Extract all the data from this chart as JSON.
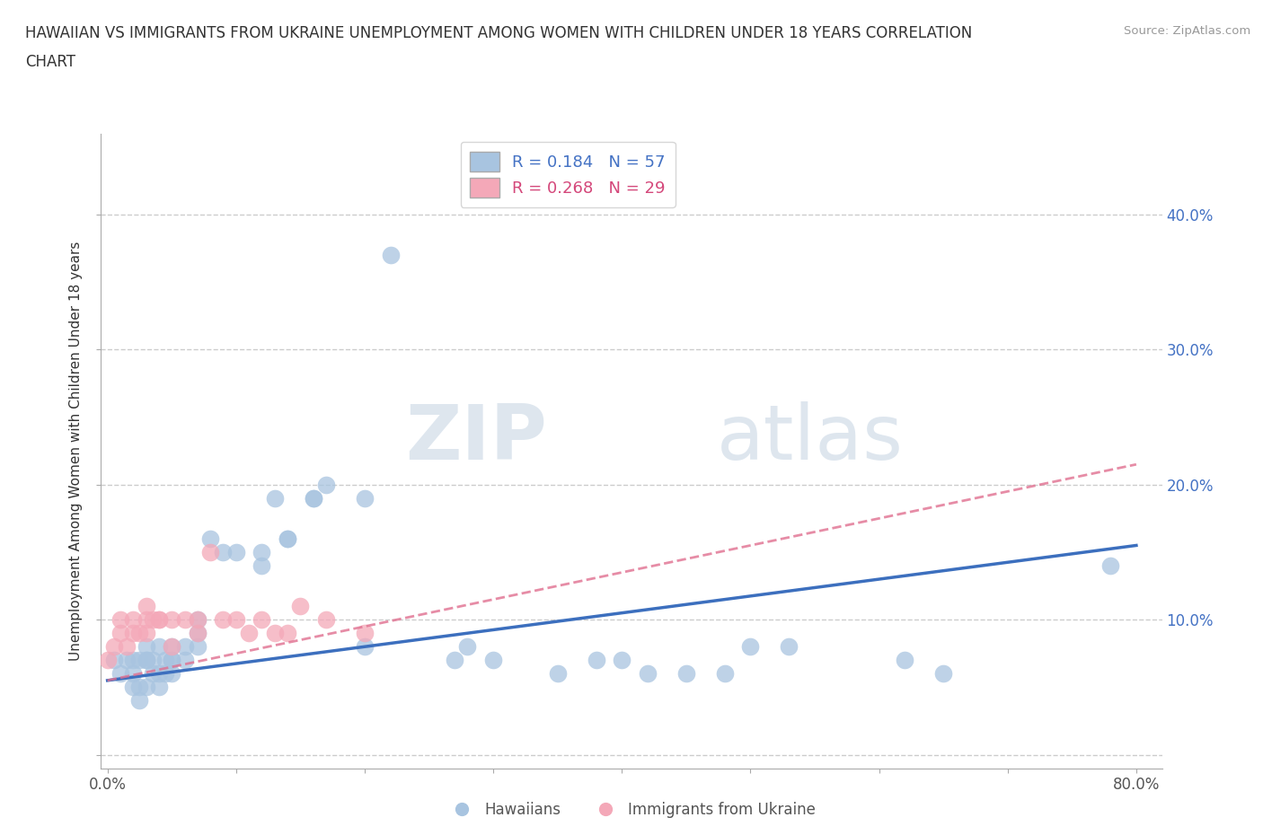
{
  "title_line1": "HAWAIIAN VS IMMIGRANTS FROM UKRAINE UNEMPLOYMENT AMONG WOMEN WITH CHILDREN UNDER 18 YEARS CORRELATION",
  "title_line2": "CHART",
  "source": "Source: ZipAtlas.com",
  "ylabel": "Unemployment Among Women with Children Under 18 years",
  "xlim": [
    -0.005,
    0.82
  ],
  "ylim": [
    -0.01,
    0.46
  ],
  "xticks": [
    0.0,
    0.1,
    0.2,
    0.3,
    0.4,
    0.5,
    0.6,
    0.7,
    0.8
  ],
  "xticklabels": [
    "0.0%",
    "",
    "",
    "",
    "",
    "",
    "",
    "",
    "80.0%"
  ],
  "yticks_right": [
    0.1,
    0.2,
    0.3,
    0.4
  ],
  "yticklabels_right": [
    "10.0%",
    "20.0%",
    "30.0%",
    "40.0%"
  ],
  "hawaiian_R": 0.184,
  "hawaiian_N": 57,
  "ukraine_R": 0.268,
  "ukraine_N": 29,
  "hawaiian_color": "#a8c4e0",
  "ukraine_color": "#f4a8b8",
  "trend_hawaiian_color": "#3c6fbe",
  "trend_ukraine_color": "#e07090",
  "watermark_zip": "ZIP",
  "watermark_atlas": "atlas",
  "hawaiian_x": [
    0.005,
    0.01,
    0.015,
    0.02,
    0.02,
    0.02,
    0.025,
    0.025,
    0.025,
    0.03,
    0.03,
    0.03,
    0.03,
    0.035,
    0.035,
    0.04,
    0.04,
    0.04,
    0.045,
    0.045,
    0.05,
    0.05,
    0.05,
    0.05,
    0.06,
    0.06,
    0.07,
    0.07,
    0.07,
    0.08,
    0.09,
    0.1,
    0.12,
    0.12,
    0.13,
    0.14,
    0.14,
    0.16,
    0.16,
    0.17,
    0.2,
    0.2,
    0.22,
    0.27,
    0.28,
    0.3,
    0.35,
    0.38,
    0.4,
    0.42,
    0.45,
    0.48,
    0.5,
    0.53,
    0.62,
    0.65,
    0.78
  ],
  "hawaiian_y": [
    0.07,
    0.06,
    0.07,
    0.05,
    0.06,
    0.07,
    0.05,
    0.07,
    0.04,
    0.05,
    0.07,
    0.07,
    0.08,
    0.06,
    0.07,
    0.05,
    0.06,
    0.08,
    0.07,
    0.06,
    0.06,
    0.07,
    0.08,
    0.07,
    0.07,
    0.08,
    0.09,
    0.1,
    0.08,
    0.16,
    0.15,
    0.15,
    0.15,
    0.14,
    0.19,
    0.16,
    0.16,
    0.19,
    0.19,
    0.2,
    0.19,
    0.08,
    0.37,
    0.07,
    0.08,
    0.07,
    0.06,
    0.07,
    0.07,
    0.06,
    0.06,
    0.06,
    0.08,
    0.08,
    0.07,
    0.06,
    0.14
  ],
  "ukraine_x": [
    0.0,
    0.005,
    0.01,
    0.01,
    0.015,
    0.02,
    0.02,
    0.025,
    0.03,
    0.03,
    0.03,
    0.035,
    0.04,
    0.04,
    0.05,
    0.05,
    0.06,
    0.07,
    0.07,
    0.08,
    0.09,
    0.1,
    0.11,
    0.12,
    0.13,
    0.14,
    0.15,
    0.17,
    0.2
  ],
  "ukraine_y": [
    0.07,
    0.08,
    0.09,
    0.1,
    0.08,
    0.1,
    0.09,
    0.09,
    0.1,
    0.11,
    0.09,
    0.1,
    0.1,
    0.1,
    0.08,
    0.1,
    0.1,
    0.09,
    0.1,
    0.15,
    0.1,
    0.1,
    0.09,
    0.1,
    0.09,
    0.09,
    0.11,
    0.1,
    0.09
  ],
  "trend_h_x0": 0.0,
  "trend_h_x1": 0.8,
  "trend_h_y0": 0.055,
  "trend_h_y1": 0.155,
  "trend_u_x0": 0.0,
  "trend_u_x1": 0.8,
  "trend_u_y0": 0.055,
  "trend_u_y1": 0.215
}
